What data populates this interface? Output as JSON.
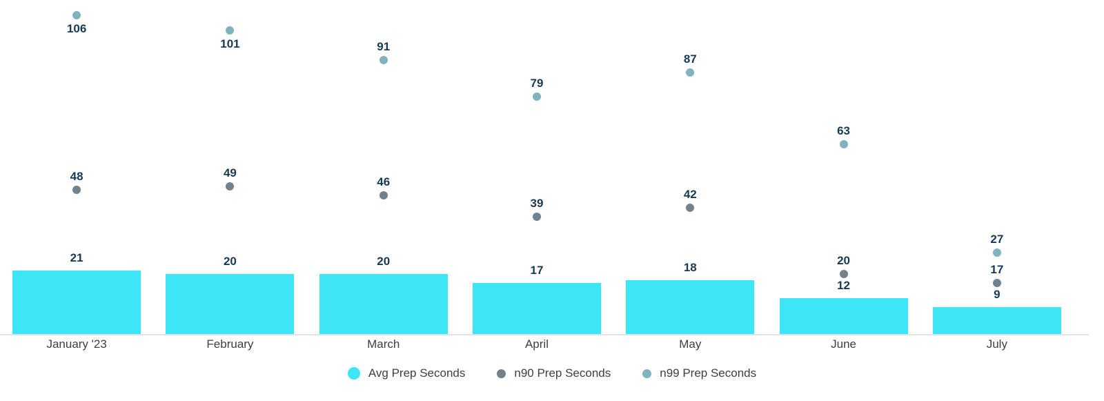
{
  "chart_data": {
    "type": "bar",
    "subtype": "combo-bar-scatter",
    "categories": [
      "January '23",
      "February",
      "March",
      "April",
      "May",
      "June",
      "July"
    ],
    "series": [
      {
        "name": "Avg Prep Seconds",
        "render": "bar",
        "color": "#3de6f7",
        "values": [
          21,
          20,
          20,
          17,
          18,
          12,
          9
        ]
      },
      {
        "name": "n90 Prep Seconds",
        "render": "scatter",
        "color": "#73818c",
        "values": [
          48,
          49,
          46,
          39,
          42,
          20,
          17
        ],
        "labels_below": [
          false,
          false,
          false,
          false,
          false,
          false,
          false
        ]
      },
      {
        "name": "n99 Prep Seconds",
        "render": "scatter",
        "color": "#7fb3bd",
        "values": [
          106,
          101,
          91,
          79,
          87,
          63,
          27
        ],
        "labels_below": [
          true,
          true,
          false,
          false,
          false,
          false,
          false
        ]
      }
    ],
    "title": "",
    "xlabel": "",
    "ylabel": "",
    "ylim": [
      0,
      111
    ],
    "grid": false,
    "value_labels": true,
    "legend_position": "bottom"
  },
  "legend": {
    "items": [
      "Avg Prep Seconds",
      "n90 Prep Seconds",
      "n99 Prep Seconds"
    ]
  },
  "colors": {
    "bar": "#3de6f7",
    "n90": "#73818c",
    "n99": "#7fb3bd",
    "value_label": "#173a52",
    "axis_label": "#3c4043",
    "legend_text": "#3c4043",
    "axis_line": "#dee2eb",
    "background": "#ffffff"
  }
}
